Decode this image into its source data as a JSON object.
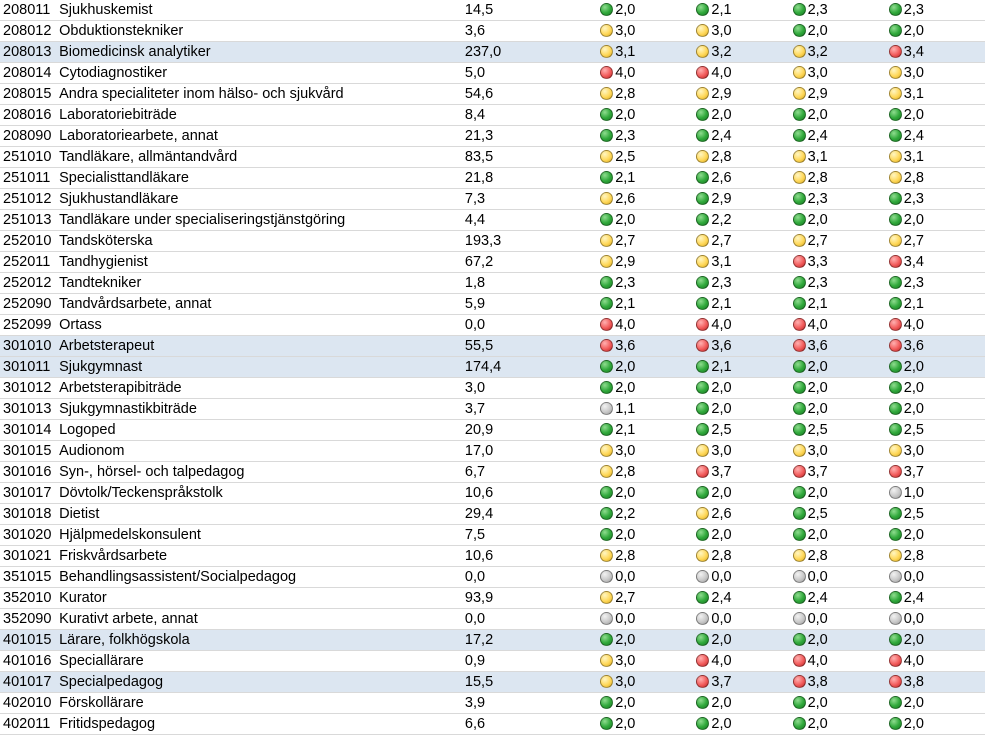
{
  "colors": {
    "green": "#2fa83a",
    "yellow": "#ffd85a",
    "red": "#f25c5c",
    "gray": "#c9c9c9",
    "highlight": "#dce6f1"
  },
  "rows": [
    {
      "code": "208011",
      "name": "Sjukhuskemist",
      "vol": "14,5",
      "hl": false,
      "v": [
        [
          "green",
          "2,0"
        ],
        [
          "green",
          "2,1"
        ],
        [
          "green",
          "2,3"
        ],
        [
          "green",
          "2,3"
        ]
      ]
    },
    {
      "code": "208012",
      "name": "Obduktionstekniker",
      "vol": "3,6",
      "hl": false,
      "v": [
        [
          "yellow",
          "3,0"
        ],
        [
          "yellow",
          "3,0"
        ],
        [
          "green",
          "2,0"
        ],
        [
          "green",
          "2,0"
        ]
      ]
    },
    {
      "code": "208013",
      "name": "Biomedicinsk analytiker",
      "vol": "237,0",
      "hl": true,
      "v": [
        [
          "yellow",
          "3,1"
        ],
        [
          "yellow",
          "3,2"
        ],
        [
          "yellow",
          "3,2"
        ],
        [
          "red",
          "3,4"
        ]
      ]
    },
    {
      "code": "208014",
      "name": "Cytodiagnostiker",
      "vol": "5,0",
      "hl": false,
      "v": [
        [
          "red",
          "4,0"
        ],
        [
          "red",
          "4,0"
        ],
        [
          "yellow",
          "3,0"
        ],
        [
          "yellow",
          "3,0"
        ]
      ]
    },
    {
      "code": "208015",
      "name": "Andra specialiteter inom hälso- och sjukvård",
      "vol": "54,6",
      "hl": false,
      "v": [
        [
          "yellow",
          "2,8"
        ],
        [
          "yellow",
          "2,9"
        ],
        [
          "yellow",
          "2,9"
        ],
        [
          "yellow",
          "3,1"
        ]
      ]
    },
    {
      "code": "208016",
      "name": "Laboratoriebiträde",
      "vol": "8,4",
      "hl": false,
      "v": [
        [
          "green",
          "2,0"
        ],
        [
          "green",
          "2,0"
        ],
        [
          "green",
          "2,0"
        ],
        [
          "green",
          "2,0"
        ]
      ]
    },
    {
      "code": "208090",
      "name": "Laboratoriearbete, annat",
      "vol": "21,3",
      "hl": false,
      "v": [
        [
          "green",
          "2,3"
        ],
        [
          "green",
          "2,4"
        ],
        [
          "green",
          "2,4"
        ],
        [
          "green",
          "2,4"
        ]
      ]
    },
    {
      "code": "251010",
      "name": "Tandläkare, allmäntandvård",
      "vol": "83,5",
      "hl": false,
      "v": [
        [
          "yellow",
          "2,5"
        ],
        [
          "yellow",
          "2,8"
        ],
        [
          "yellow",
          "3,1"
        ],
        [
          "yellow",
          "3,1"
        ]
      ]
    },
    {
      "code": "251011",
      "name": "Specialisttandläkare",
      "vol": "21,8",
      "hl": false,
      "v": [
        [
          "green",
          "2,1"
        ],
        [
          "green",
          "2,6"
        ],
        [
          "yellow",
          "2,8"
        ],
        [
          "yellow",
          "2,8"
        ]
      ]
    },
    {
      "code": "251012",
      "name": "Sjukhustandläkare",
      "vol": "7,3",
      "hl": false,
      "v": [
        [
          "yellow",
          "2,6"
        ],
        [
          "green",
          "2,9"
        ],
        [
          "green",
          "2,3"
        ],
        [
          "green",
          "2,3"
        ]
      ]
    },
    {
      "code": "251013",
      "name": "Tandläkare under specialiseringstjänstgöring",
      "vol": "4,4",
      "hl": false,
      "v": [
        [
          "green",
          "2,0"
        ],
        [
          "green",
          "2,2"
        ],
        [
          "green",
          "2,0"
        ],
        [
          "green",
          "2,0"
        ]
      ]
    },
    {
      "code": "252010",
      "name": "Tandsköterska",
      "vol": "193,3",
      "hl": false,
      "v": [
        [
          "yellow",
          "2,7"
        ],
        [
          "yellow",
          "2,7"
        ],
        [
          "yellow",
          "2,7"
        ],
        [
          "yellow",
          "2,7"
        ]
      ]
    },
    {
      "code": "252011",
      "name": "Tandhygienist",
      "vol": "67,2",
      "hl": false,
      "v": [
        [
          "yellow",
          "2,9"
        ],
        [
          "yellow",
          "3,1"
        ],
        [
          "red",
          "3,3"
        ],
        [
          "red",
          "3,4"
        ]
      ]
    },
    {
      "code": "252012",
      "name": "Tandtekniker",
      "vol": "1,8",
      "hl": false,
      "v": [
        [
          "green",
          "2,3"
        ],
        [
          "green",
          "2,3"
        ],
        [
          "green",
          "2,3"
        ],
        [
          "green",
          "2,3"
        ]
      ]
    },
    {
      "code": "252090",
      "name": "Tandvårdsarbete, annat",
      "vol": "5,9",
      "hl": false,
      "v": [
        [
          "green",
          "2,1"
        ],
        [
          "green",
          "2,1"
        ],
        [
          "green",
          "2,1"
        ],
        [
          "green",
          "2,1"
        ]
      ]
    },
    {
      "code": "252099",
      "name": "Ortass",
      "vol": "0,0",
      "hl": false,
      "v": [
        [
          "red",
          "4,0"
        ],
        [
          "red",
          "4,0"
        ],
        [
          "red",
          "4,0"
        ],
        [
          "red",
          "4,0"
        ]
      ]
    },
    {
      "code": "301010",
      "name": "Arbetsterapeut",
      "vol": "55,5",
      "hl": true,
      "v": [
        [
          "red",
          "3,6"
        ],
        [
          "red",
          "3,6"
        ],
        [
          "red",
          "3,6"
        ],
        [
          "red",
          "3,6"
        ]
      ]
    },
    {
      "code": "301011",
      "name": "Sjukgymnast",
      "vol": "174,4",
      "hl": true,
      "v": [
        [
          "green",
          "2,0"
        ],
        [
          "green",
          "2,1"
        ],
        [
          "green",
          "2,0"
        ],
        [
          "green",
          "2,0"
        ]
      ]
    },
    {
      "code": "301012",
      "name": "Arbetsterapibiträde",
      "vol": "3,0",
      "hl": false,
      "v": [
        [
          "green",
          "2,0"
        ],
        [
          "green",
          "2,0"
        ],
        [
          "green",
          "2,0"
        ],
        [
          "green",
          "2,0"
        ]
      ]
    },
    {
      "code": "301013",
      "name": "Sjukgymnastikbiträde",
      "vol": "3,7",
      "hl": false,
      "v": [
        [
          "gray",
          "1,1"
        ],
        [
          "green",
          "2,0"
        ],
        [
          "green",
          "2,0"
        ],
        [
          "green",
          "2,0"
        ]
      ]
    },
    {
      "code": "301014",
      "name": "Logoped",
      "vol": "20,9",
      "hl": false,
      "v": [
        [
          "green",
          "2,1"
        ],
        [
          "green",
          "2,5"
        ],
        [
          "green",
          "2,5"
        ],
        [
          "green",
          "2,5"
        ]
      ]
    },
    {
      "code": "301015",
      "name": "Audionom",
      "vol": "17,0",
      "hl": false,
      "v": [
        [
          "yellow",
          "3,0"
        ],
        [
          "yellow",
          "3,0"
        ],
        [
          "yellow",
          "3,0"
        ],
        [
          "yellow",
          "3,0"
        ]
      ]
    },
    {
      "code": "301016",
      "name": "Syn-, hörsel- och talpedagog",
      "vol": "6,7",
      "hl": false,
      "v": [
        [
          "yellow",
          "2,8"
        ],
        [
          "red",
          "3,7"
        ],
        [
          "red",
          "3,7"
        ],
        [
          "red",
          "3,7"
        ]
      ]
    },
    {
      "code": "301017",
      "name": "Dövtolk/Teckenspråkstolk",
      "vol": "10,6",
      "hl": false,
      "v": [
        [
          "green",
          "2,0"
        ],
        [
          "green",
          "2,0"
        ],
        [
          "green",
          "2,0"
        ],
        [
          "gray",
          "1,0"
        ]
      ]
    },
    {
      "code": "301018",
      "name": "Dietist",
      "vol": "29,4",
      "hl": false,
      "v": [
        [
          "green",
          "2,2"
        ],
        [
          "yellow",
          "2,6"
        ],
        [
          "green",
          "2,5"
        ],
        [
          "green",
          "2,5"
        ]
      ]
    },
    {
      "code": "301020",
      "name": "Hjälpmedelskonsulent",
      "vol": "7,5",
      "hl": false,
      "v": [
        [
          "green",
          "2,0"
        ],
        [
          "green",
          "2,0"
        ],
        [
          "green",
          "2,0"
        ],
        [
          "green",
          "2,0"
        ]
      ]
    },
    {
      "code": "301021",
      "name": "Friskvårdsarbete",
      "vol": "10,6",
      "hl": false,
      "v": [
        [
          "yellow",
          "2,8"
        ],
        [
          "yellow",
          "2,8"
        ],
        [
          "yellow",
          "2,8"
        ],
        [
          "yellow",
          "2,8"
        ]
      ]
    },
    {
      "code": "351015",
      "name": "Behandlingsassistent/Socialpedagog",
      "vol": "0,0",
      "hl": false,
      "v": [
        [
          "gray",
          "0,0"
        ],
        [
          "gray",
          "0,0"
        ],
        [
          "gray",
          "0,0"
        ],
        [
          "gray",
          "0,0"
        ]
      ]
    },
    {
      "code": "352010",
      "name": "Kurator",
      "vol": "93,9",
      "hl": false,
      "v": [
        [
          "yellow",
          "2,7"
        ],
        [
          "green",
          "2,4"
        ],
        [
          "green",
          "2,4"
        ],
        [
          "green",
          "2,4"
        ]
      ]
    },
    {
      "code": "352090",
      "name": "Kurativt arbete, annat",
      "vol": "0,0",
      "hl": false,
      "v": [
        [
          "gray",
          "0,0"
        ],
        [
          "gray",
          "0,0"
        ],
        [
          "gray",
          "0,0"
        ],
        [
          "gray",
          "0,0"
        ]
      ]
    },
    {
      "code": "401015",
      "name": "Lärare, folkhögskola",
      "vol": "17,2",
      "hl": true,
      "v": [
        [
          "green",
          "2,0"
        ],
        [
          "green",
          "2,0"
        ],
        [
          "green",
          "2,0"
        ],
        [
          "green",
          "2,0"
        ]
      ]
    },
    {
      "code": "401016",
      "name": "Speciallärare",
      "vol": "0,9",
      "hl": false,
      "v": [
        [
          "yellow",
          "3,0"
        ],
        [
          "red",
          "4,0"
        ],
        [
          "red",
          "4,0"
        ],
        [
          "red",
          "4,0"
        ]
      ]
    },
    {
      "code": "401017",
      "name": "Specialpedagog",
      "vol": "15,5",
      "hl": true,
      "v": [
        [
          "yellow",
          "3,0"
        ],
        [
          "red",
          "3,7"
        ],
        [
          "red",
          "3,8"
        ],
        [
          "red",
          "3,8"
        ]
      ]
    },
    {
      "code": "402010",
      "name": "Förskollärare",
      "vol": "3,9",
      "hl": false,
      "v": [
        [
          "green",
          "2,0"
        ],
        [
          "green",
          "2,0"
        ],
        [
          "green",
          "2,0"
        ],
        [
          "green",
          "2,0"
        ]
      ]
    },
    {
      "code": "402011",
      "name": "Fritidspedagog",
      "vol": "6,6",
      "hl": false,
      "v": [
        [
          "green",
          "2,0"
        ],
        [
          "green",
          "2,0"
        ],
        [
          "green",
          "2,0"
        ],
        [
          "green",
          "2,0"
        ]
      ]
    }
  ]
}
